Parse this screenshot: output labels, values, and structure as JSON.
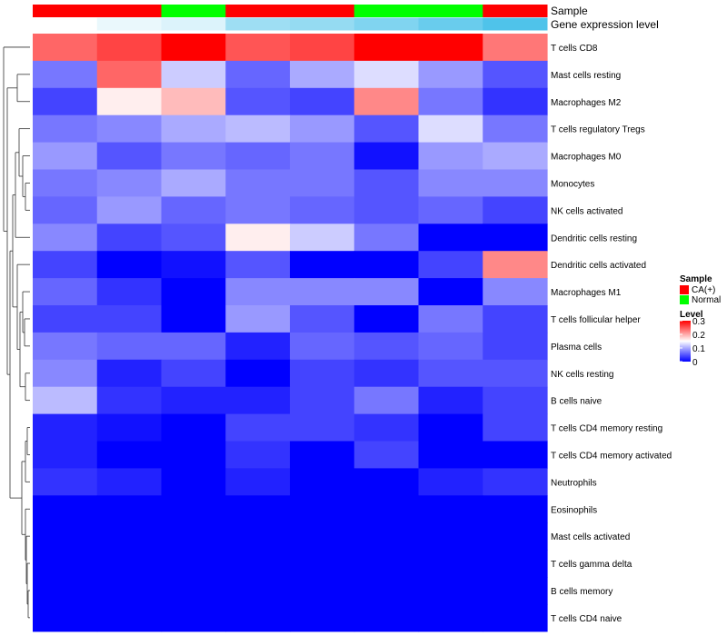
{
  "chart_data": {
    "type": "heatmap",
    "title": "",
    "annotation_rows": [
      {
        "label": "Sample",
        "values": [
          "CA(+)",
          "CA(+)",
          "Normal",
          "CA(+)",
          "CA(+)",
          "Normal",
          "Normal",
          "CA(+)"
        ]
      },
      {
        "label": "Gene expression level",
        "values": [
          0.0,
          0.12,
          0.2,
          0.55,
          0.6,
          0.72,
          0.85,
          1.0
        ]
      }
    ],
    "sample_colors": {
      "CA(+)": "#ff0000",
      "Normal": "#00ff00"
    },
    "gene_expression_colors": {
      "low": "#ffffff",
      "high": "#4fc3ea"
    },
    "rows": [
      "T cells CD8",
      "Mast cells resting",
      "Macrophages M2",
      "T cells regulatory  Tregs",
      "Macrophages M0",
      "Monocytes",
      "NK cells activated",
      "Dendritic cells resting",
      "Dendritic cells activated",
      "Macrophages M1",
      "T cells follicular helper",
      "Plasma cells",
      "NK cells resting",
      "B cells naive",
      "T cells CD4 memory resting",
      "T cells CD4 memory activated",
      "Neutrophils",
      "Eosinophils",
      "Mast cells activated",
      "T cells gamma delta",
      "B cells memory",
      "T cells CD4 naive"
    ],
    "values": [
      [
        0.24,
        0.26,
        0.3,
        0.25,
        0.26,
        0.3,
        0.3,
        0.23
      ],
      [
        0.07,
        0.24,
        0.12,
        0.06,
        0.1,
        0.13,
        0.09,
        0.05
      ],
      [
        0.04,
        0.16,
        0.19,
        0.05,
        0.04,
        0.22,
        0.07,
        0.03
      ],
      [
        0.07,
        0.08,
        0.1,
        0.11,
        0.09,
        0.05,
        0.13,
        0.07
      ],
      [
        0.09,
        0.05,
        0.07,
        0.06,
        0.07,
        0.01,
        0.09,
        0.1
      ],
      [
        0.07,
        0.08,
        0.1,
        0.07,
        0.07,
        0.05,
        0.08,
        0.08
      ],
      [
        0.06,
        0.09,
        0.06,
        0.07,
        0.06,
        0.05,
        0.06,
        0.04
      ],
      [
        0.08,
        0.04,
        0.05,
        0.16,
        0.12,
        0.07,
        0.0,
        0.0
      ],
      [
        0.04,
        0.0,
        0.01,
        0.05,
        0.0,
        0.0,
        0.04,
        0.22
      ],
      [
        0.06,
        0.03,
        0.0,
        0.08,
        0.08,
        0.08,
        0.0,
        0.08
      ],
      [
        0.04,
        0.04,
        0.0,
        0.09,
        0.05,
        0.0,
        0.07,
        0.04
      ],
      [
        0.07,
        0.06,
        0.06,
        0.02,
        0.06,
        0.05,
        0.06,
        0.04
      ],
      [
        0.08,
        0.02,
        0.04,
        0.0,
        0.04,
        0.03,
        0.05,
        0.05
      ],
      [
        0.11,
        0.03,
        0.02,
        0.02,
        0.04,
        0.07,
        0.02,
        0.04
      ],
      [
        0.02,
        0.01,
        0.0,
        0.04,
        0.04,
        0.03,
        0.0,
        0.04
      ],
      [
        0.02,
        0.0,
        0.0,
        0.03,
        0.0,
        0.04,
        0.0,
        0.0
      ],
      [
        0.03,
        0.02,
        0.0,
        0.02,
        0.0,
        0.0,
        0.02,
        0.03
      ],
      [
        0.0,
        0.0,
        0.0,
        0.0,
        0.0,
        0.0,
        0.0,
        0.0
      ],
      [
        0.0,
        0.0,
        0.0,
        0.0,
        0.0,
        0.0,
        0.0,
        0.0
      ],
      [
        0.0,
        0.0,
        0.0,
        0.0,
        0.0,
        0.0,
        0.0,
        0.0
      ],
      [
        0.0,
        0.0,
        0.0,
        0.0,
        0.0,
        0.0,
        0.0,
        0.0
      ],
      [
        0.0,
        0.0,
        0.0,
        0.0,
        0.0,
        0.0,
        0.0,
        0.0
      ]
    ],
    "color_scale": {
      "min": 0,
      "max": 0.3,
      "low": "#0000ff",
      "mid": "#ffffff",
      "high": "#ff0000",
      "midpoint": 0.15
    },
    "legend": {
      "sample_title": "Sample",
      "sample_entries": [
        "CA(+)",
        "Normal"
      ],
      "level_title": "Level",
      "level_ticks": [
        "0.3",
        "0.2",
        "0.1",
        "0"
      ],
      "level_tick_values": [
        0.3,
        0.2,
        0.1,
        0
      ]
    },
    "dendrogram": "row clustering tree shown on left"
  }
}
